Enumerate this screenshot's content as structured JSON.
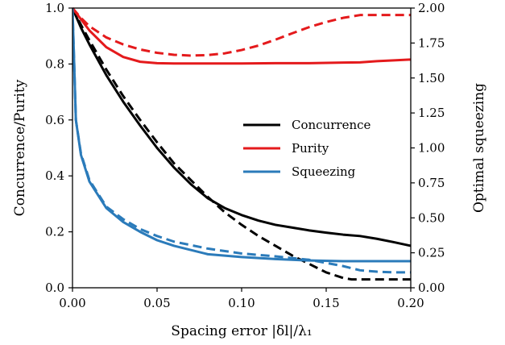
{
  "chart_data": {
    "type": "line",
    "xlabel": "Spacing error |δl|/λ₁",
    "ylabel_left": "Concurrence/Purity",
    "ylabel_right": "Optimal squeezing",
    "xlim": [
      0.0,
      0.2
    ],
    "ylim_left": [
      0.0,
      1.0
    ],
    "ylim_right": [
      0.0,
      2.0
    ],
    "x_ticks": [
      "0.00",
      "0.05",
      "0.10",
      "0.15",
      "0.20"
    ],
    "y_ticks_left": [
      "0.0",
      "0.2",
      "0.4",
      "0.6",
      "0.8",
      "1.0"
    ],
    "y_ticks_right": [
      "0.00",
      "0.25",
      "0.50",
      "0.75",
      "1.00",
      "1.25",
      "1.50",
      "1.75",
      "2.00"
    ],
    "legend_position": "center-right",
    "legend": [
      {
        "label": "Concurrence",
        "color": "#000000"
      },
      {
        "label": "Purity",
        "color": "#e41a1c"
      },
      {
        "label": "Squeezing",
        "color": "#2b7bba"
      }
    ],
    "series": [
      {
        "name": "Concurrence",
        "style": "solid",
        "color": "#000000",
        "axis": "left",
        "x": [
          0,
          0.005,
          0.01,
          0.02,
          0.03,
          0.04,
          0.05,
          0.06,
          0.07,
          0.08,
          0.09,
          0.1,
          0.11,
          0.12,
          0.13,
          0.14,
          0.15,
          0.16,
          0.17,
          0.18,
          0.19,
          0.2
        ],
        "y": [
          1.0,
          0.93,
          0.87,
          0.76,
          0.665,
          0.58,
          0.5,
          0.43,
          0.37,
          0.32,
          0.285,
          0.26,
          0.24,
          0.225,
          0.215,
          0.205,
          0.197,
          0.19,
          0.185,
          0.175,
          0.163,
          0.15
        ]
      },
      {
        "name": "",
        "style": "dashed",
        "color": "#000000",
        "axis": "left",
        "x": [
          0,
          0.005,
          0.01,
          0.02,
          0.03,
          0.04,
          0.05,
          0.06,
          0.07,
          0.08,
          0.09,
          0.1,
          0.11,
          0.12,
          0.13,
          0.14,
          0.15,
          0.16,
          0.165,
          0.17,
          0.18,
          0.19,
          0.2
        ],
        "y": [
          1.0,
          0.94,
          0.885,
          0.78,
          0.685,
          0.6,
          0.52,
          0.445,
          0.385,
          0.325,
          0.27,
          0.225,
          0.185,
          0.15,
          0.115,
          0.085,
          0.055,
          0.035,
          0.03,
          0.03,
          0.03,
          0.03,
          0.03
        ]
      },
      {
        "name": "Purity",
        "style": "solid",
        "color": "#e41a1c",
        "axis": "left",
        "x": [
          0,
          0.005,
          0.01,
          0.02,
          0.03,
          0.04,
          0.05,
          0.06,
          0.08,
          0.1,
          0.12,
          0.14,
          0.16,
          0.17,
          0.18,
          0.19,
          0.2
        ],
        "y": [
          1.0,
          0.96,
          0.92,
          0.86,
          0.825,
          0.808,
          0.803,
          0.802,
          0.802,
          0.802,
          0.803,
          0.803,
          0.805,
          0.806,
          0.81,
          0.813,
          0.816
        ]
      },
      {
        "name": "",
        "style": "dashed",
        "color": "#e41a1c",
        "axis": "left",
        "x": [
          0,
          0.005,
          0.01,
          0.02,
          0.03,
          0.04,
          0.05,
          0.06,
          0.07,
          0.08,
          0.09,
          0.1,
          0.11,
          0.12,
          0.13,
          0.14,
          0.15,
          0.16,
          0.17,
          0.18,
          0.19,
          0.2
        ],
        "y": [
          1.0,
          0.965,
          0.935,
          0.895,
          0.87,
          0.852,
          0.84,
          0.833,
          0.83,
          0.832,
          0.838,
          0.85,
          0.866,
          0.887,
          0.91,
          0.932,
          0.95,
          0.965,
          0.975,
          0.975,
          0.975,
          0.975
        ]
      },
      {
        "name": "Squeezing",
        "style": "solid",
        "color": "#2b7bba",
        "axis": "right",
        "x": [
          0,
          0.002,
          0.005,
          0.01,
          0.02,
          0.03,
          0.04,
          0.05,
          0.06,
          0.08,
          0.1,
          0.12,
          0.14,
          0.16,
          0.18,
          0.2
        ],
        "y": [
          2.0,
          1.2,
          0.95,
          0.76,
          0.57,
          0.47,
          0.4,
          0.34,
          0.3,
          0.24,
          0.22,
          0.205,
          0.195,
          0.19,
          0.19,
          0.19
        ]
      },
      {
        "name": "",
        "style": "dashed",
        "color": "#2b7bba",
        "axis": "right",
        "x": [
          0,
          0.002,
          0.005,
          0.01,
          0.02,
          0.03,
          0.04,
          0.05,
          0.06,
          0.08,
          0.1,
          0.12,
          0.14,
          0.16,
          0.17,
          0.18,
          0.19,
          0.2
        ],
        "y": [
          2.0,
          1.2,
          0.96,
          0.77,
          0.58,
          0.49,
          0.42,
          0.37,
          0.33,
          0.28,
          0.245,
          0.225,
          0.2,
          0.155,
          0.125,
          0.115,
          0.11,
          0.11
        ]
      }
    ]
  }
}
